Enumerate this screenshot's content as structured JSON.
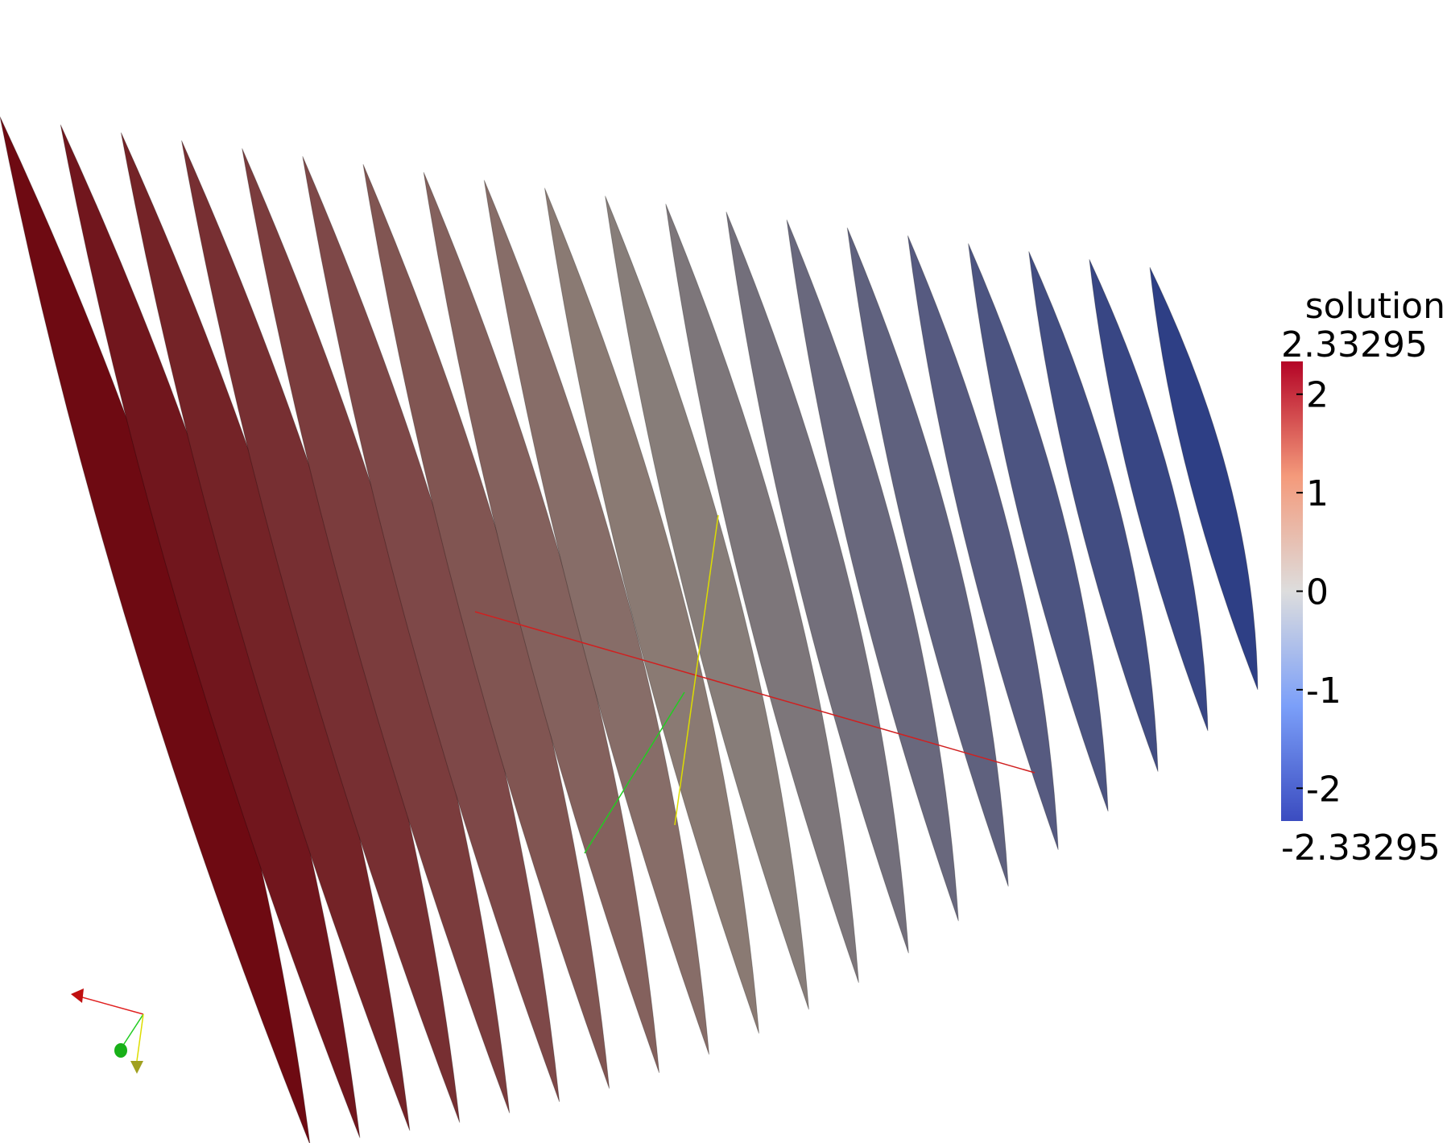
{
  "colorbar": {
    "title": "solution",
    "range": [
      -2.33295,
      2.33295
    ],
    "ticks": [
      -2,
      -1,
      0,
      1,
      2
    ]
  }
}
